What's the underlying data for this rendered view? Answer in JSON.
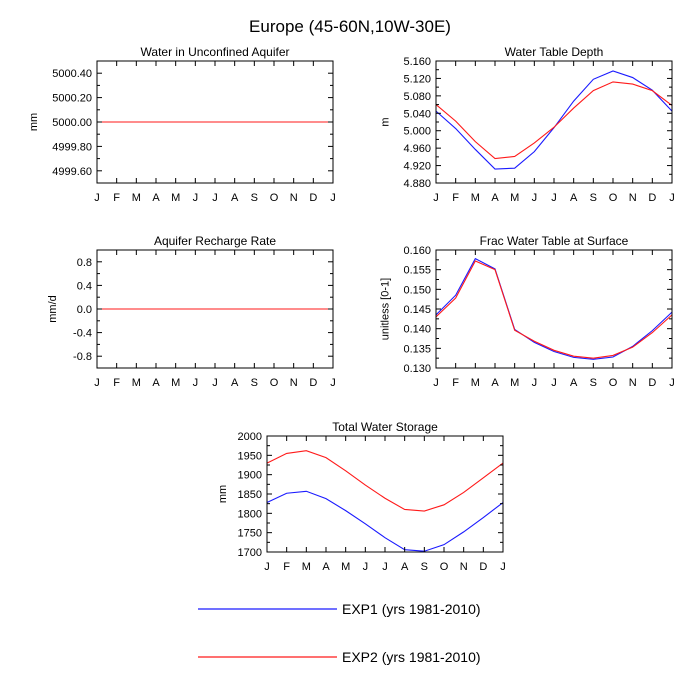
{
  "figure": {
    "title": "Europe (45-60N,10W-30E)",
    "series_colors": {
      "EXP1": "#1a1aff",
      "EXP2": "#ff1a1a"
    }
  },
  "chart_data": [
    {
      "type": "line",
      "title": "Water in Unconfined Aquifer",
      "ylabel": "mm",
      "xlabel": "",
      "x": [
        "J",
        "F",
        "M",
        "A",
        "M",
        "J",
        "J",
        "A",
        "S",
        "O",
        "N",
        "D",
        "J"
      ],
      "ylim": [
        4999.5,
        5000.5
      ],
      "yticks": [
        4999.6,
        4999.8,
        5000.0,
        5000.2,
        5000.4
      ],
      "ytick_labels": [
        "4999.60",
        "4999.80",
        "5000.00",
        "5000.20",
        "5000.40"
      ],
      "series": [
        {
          "name": "EXP1",
          "values": [
            5000,
            5000,
            5000,
            5000,
            5000,
            5000,
            5000,
            5000,
            5000,
            5000,
            5000,
            5000,
            5000
          ]
        },
        {
          "name": "EXP2",
          "values": [
            5000,
            5000,
            5000,
            5000,
            5000,
            5000,
            5000,
            5000,
            5000,
            5000,
            5000,
            5000,
            5000
          ]
        }
      ]
    },
    {
      "type": "line",
      "title": "Water Table Depth",
      "ylabel": "m",
      "xlabel": "",
      "x": [
        "J",
        "F",
        "M",
        "A",
        "M",
        "J",
        "J",
        "A",
        "S",
        "O",
        "N",
        "D",
        "J"
      ],
      "ylim": [
        4.88,
        5.16
      ],
      "yticks": [
        4.88,
        4.92,
        4.96,
        5.0,
        5.04,
        5.08,
        5.12,
        5.16
      ],
      "ytick_labels": [
        "4.880",
        "4.920",
        "4.960",
        "5.000",
        "5.040",
        "5.080",
        "5.120",
        "5.160"
      ],
      "series": [
        {
          "name": "EXP1",
          "values": [
            5.045,
            5.005,
            4.957,
            4.912,
            4.914,
            4.952,
            5.007,
            5.068,
            5.118,
            5.137,
            5.122,
            5.093,
            5.045
          ]
        },
        {
          "name": "EXP2",
          "values": [
            5.06,
            5.022,
            4.975,
            4.936,
            4.941,
            4.972,
            5.008,
            5.052,
            5.092,
            5.112,
            5.107,
            5.092,
            5.058
          ]
        }
      ]
    },
    {
      "type": "line",
      "title": "Aquifer Recharge Rate",
      "ylabel": "mm/d",
      "xlabel": "",
      "x": [
        "J",
        "F",
        "M",
        "A",
        "M",
        "J",
        "J",
        "A",
        "S",
        "O",
        "N",
        "D",
        "J"
      ],
      "ylim": [
        -1.0,
        1.0
      ],
      "yticks": [
        -0.8,
        -0.4,
        0.0,
        0.4,
        0.8
      ],
      "ytick_labels": [
        "-0.8",
        "-0.4",
        "0.0",
        "0.4",
        "0.8"
      ],
      "series": [
        {
          "name": "EXP1",
          "values": [
            0,
            0,
            0,
            0,
            0,
            0,
            0,
            0,
            0,
            0,
            0,
            0,
            0
          ]
        },
        {
          "name": "EXP2",
          "values": [
            0,
            0,
            0,
            0,
            0,
            0,
            0,
            0,
            0,
            0,
            0,
            0,
            0
          ]
        }
      ]
    },
    {
      "type": "line",
      "title": "Frac Water Table at Surface",
      "ylabel": "unitless [0-1]",
      "xlabel": "",
      "x": [
        "J",
        "F",
        "M",
        "A",
        "M",
        "J",
        "J",
        "A",
        "S",
        "O",
        "N",
        "D",
        "J"
      ],
      "ylim": [
        0.13,
        0.16
      ],
      "yticks": [
        0.13,
        0.135,
        0.14,
        0.145,
        0.15,
        0.155,
        0.16
      ],
      "ytick_labels": [
        "0.130",
        "0.135",
        "0.140",
        "0.145",
        "0.150",
        "0.155",
        "0.160"
      ],
      "series": [
        {
          "name": "EXP1",
          "values": [
            0.1435,
            0.1485,
            0.1578,
            0.1552,
            0.1398,
            0.1365,
            0.1342,
            0.1327,
            0.1322,
            0.1328,
            0.1355,
            0.1395,
            0.1442
          ]
        },
        {
          "name": "EXP2",
          "values": [
            0.143,
            0.1478,
            0.1572,
            0.155,
            0.1396,
            0.1368,
            0.1345,
            0.133,
            0.1325,
            0.1332,
            0.1353,
            0.139,
            0.1435
          ]
        }
      ]
    },
    {
      "type": "line",
      "title": "Total Water Storage",
      "ylabel": "mm",
      "xlabel": "",
      "x": [
        "J",
        "F",
        "M",
        "A",
        "M",
        "J",
        "J",
        "A",
        "S",
        "O",
        "N",
        "D",
        "J"
      ],
      "ylim": [
        1700,
        2000
      ],
      "yticks": [
        1700,
        1750,
        1800,
        1850,
        1900,
        1950,
        2000
      ],
      "ytick_labels": [
        "1700",
        "1750",
        "1800",
        "1850",
        "1900",
        "1950",
        "2000"
      ],
      "series": [
        {
          "name": "EXP1",
          "values": [
            1828,
            1852,
            1857,
            1838,
            1807,
            1773,
            1737,
            1706,
            1702,
            1719,
            1752,
            1789,
            1828
          ]
        },
        {
          "name": "EXP2",
          "values": [
            1930,
            1955,
            1962,
            1944,
            1910,
            1873,
            1839,
            1810,
            1806,
            1822,
            1854,
            1892,
            1930
          ]
        }
      ]
    }
  ],
  "legend": {
    "items": [
      {
        "label": "EXP1 (yrs 1981-2010)",
        "color": "#1a1aff"
      },
      {
        "label": "EXP2 (yrs 1981-2010)",
        "color": "#ff1a1a"
      }
    ]
  }
}
